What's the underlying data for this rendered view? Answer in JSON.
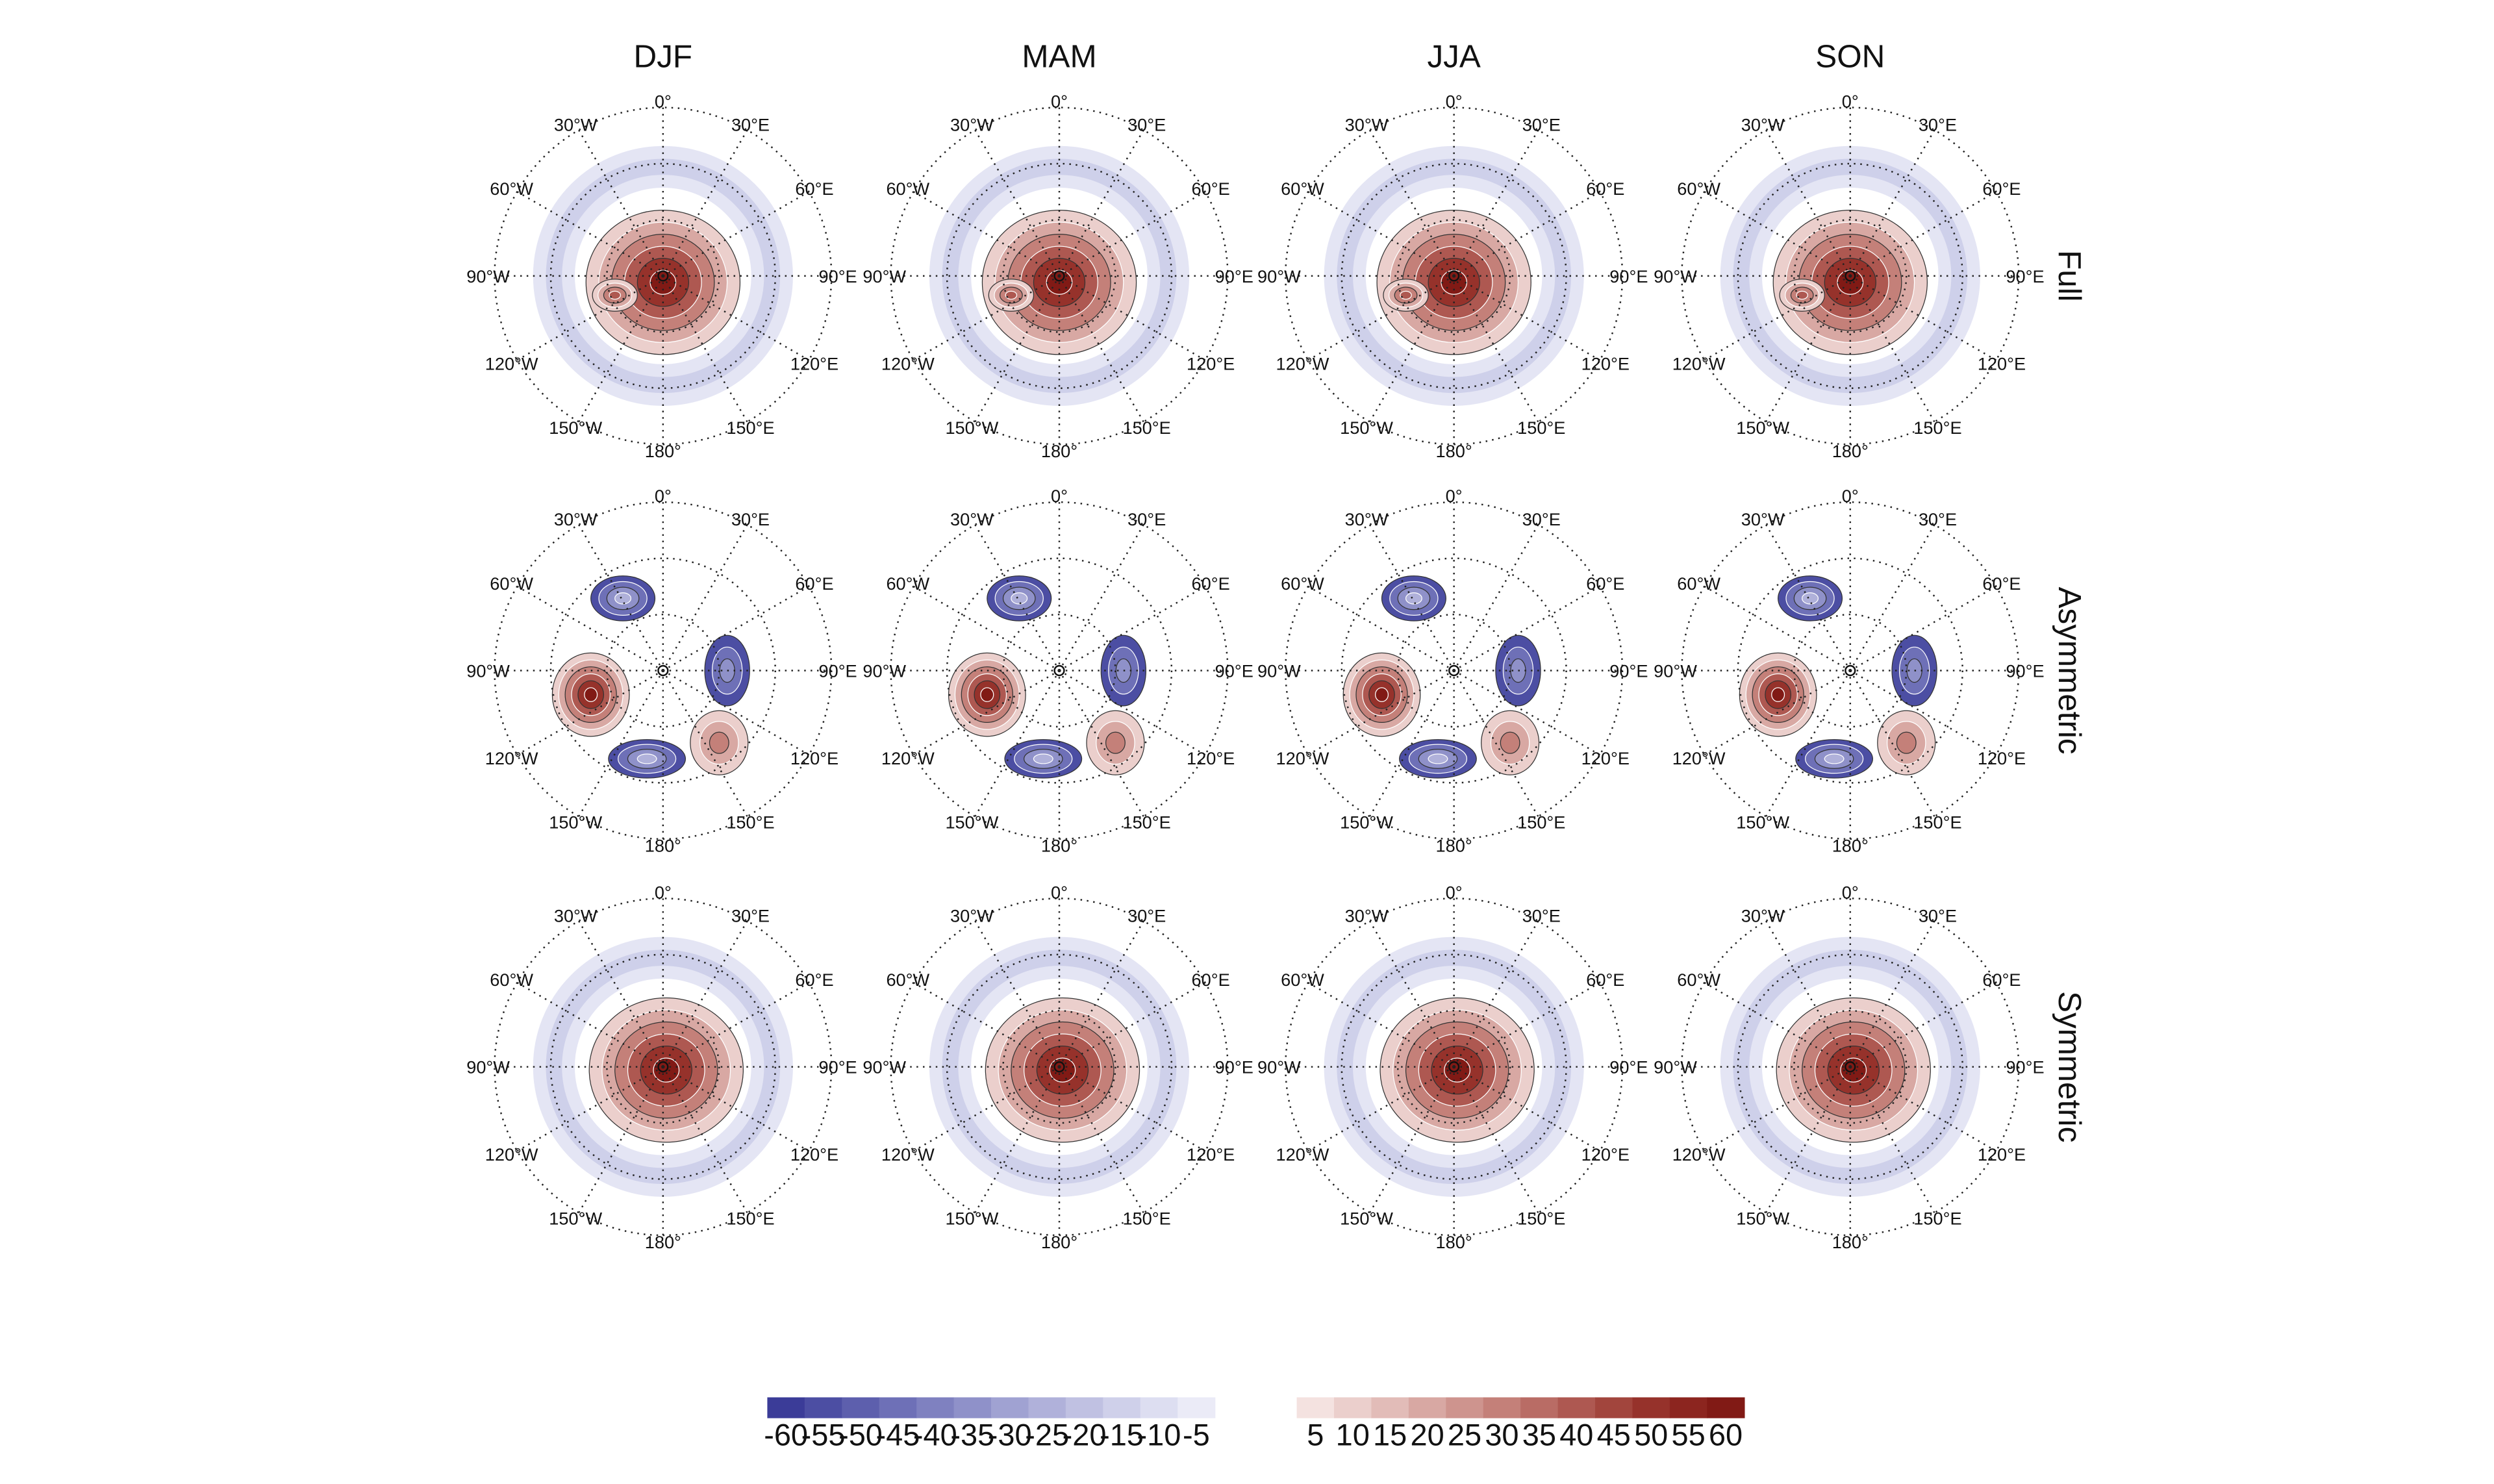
{
  "columns": [
    "DJF",
    "MAM",
    "JJA",
    "SON"
  ],
  "rows": [
    "Full",
    "Asymmetric",
    "Symmetric"
  ],
  "longitude_labels": [
    "0°",
    "30°E",
    "60°E",
    "90°E",
    "120°E",
    "150°E",
    "180°",
    "150°W",
    "120°W",
    "90°W",
    "60°W",
    "30°W"
  ],
  "colorbar": {
    "negative": {
      "ticks": [
        -60,
        -55,
        -50,
        -45,
        -40,
        -35,
        -30,
        -25,
        -20,
        -15,
        -10,
        -5
      ],
      "colors": [
        "#3b3c98",
        "#4c4ea3",
        "#5d5fad",
        "#6e70b7",
        "#7f81c0",
        "#8f91c9",
        "#a0a2d2",
        "#b0b1da",
        "#c0c1e2",
        "#cfd0ea",
        "#dddef1",
        "#ebebf7"
      ]
    },
    "positive": {
      "ticks": [
        5,
        10,
        15,
        20,
        25,
        30,
        35,
        40,
        45,
        50,
        55,
        60
      ],
      "colors": [
        "#f4e2e0",
        "#ebcfcc",
        "#e2bcb8",
        "#d8a8a3",
        "#ce948e",
        "#c48079",
        "#b96c65",
        "#ae5851",
        "#a2453d",
        "#96322b",
        "#8c251f",
        "#811a15"
      ]
    }
  }
}
